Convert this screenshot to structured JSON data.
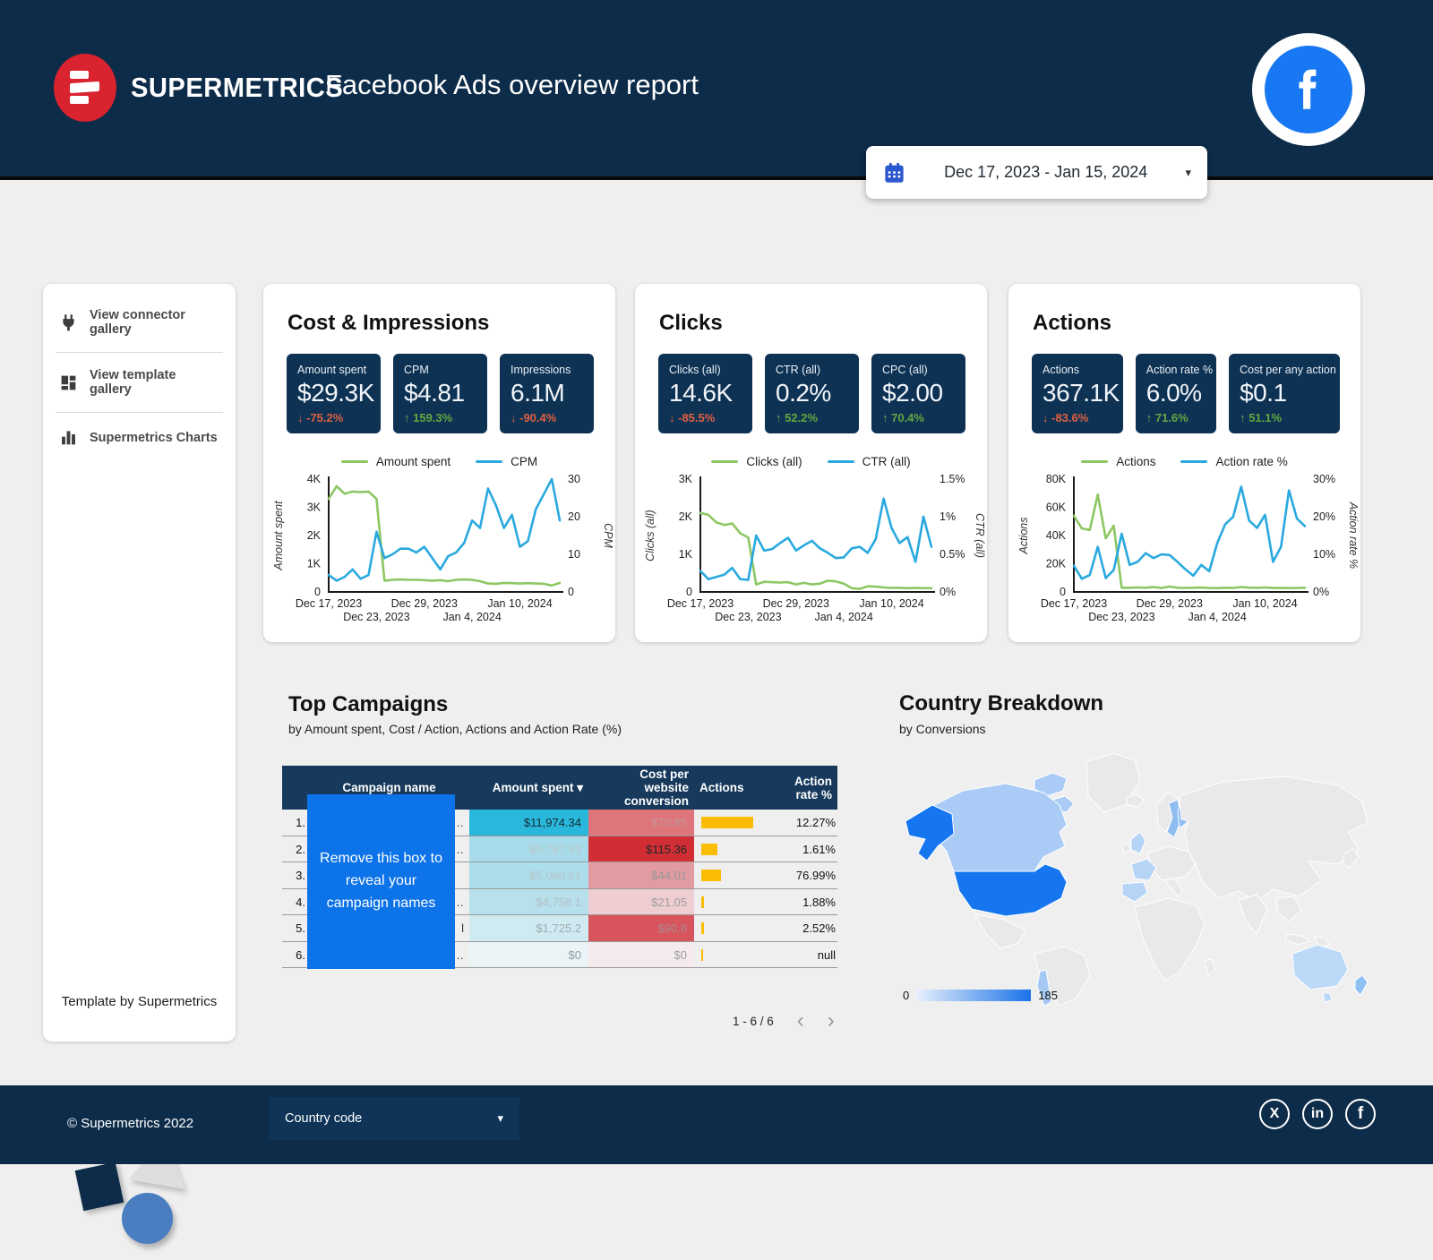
{
  "header": {
    "brand": "SUPERMETRICS",
    "title": "Facebook Ads overview report"
  },
  "date_picker": {
    "range": "Dec 17, 2023 - Jan 15, 2024"
  },
  "icons": {
    "caret_down": "▾",
    "chevron_left": "‹",
    "chevron_right": "›",
    "arrow_up": "↑",
    "arrow_down": "↓",
    "x_glyph": "X",
    "linkedin_glyph": "in",
    "facebook_glyph": "f"
  },
  "sidebar": {
    "items": [
      {
        "label": "View connector gallery"
      },
      {
        "label": "View template gallery"
      },
      {
        "label": "Supermetrics Charts"
      }
    ],
    "footer_note": "Template by Supermetrics"
  },
  "cards": [
    {
      "title": "Cost & Impressions",
      "kpis": [
        {
          "label": "Amount spent",
          "value": "$29.3K",
          "delta": "-75.2%",
          "dir": "down"
        },
        {
          "label": "CPM",
          "value": "$4.81",
          "delta": "159.3%",
          "dir": "up"
        },
        {
          "label": "Impressions",
          "value": "6.1M",
          "delta": "-90.4%",
          "dir": "down"
        }
      ]
    },
    {
      "title": "Clicks",
      "kpis": [
        {
          "label": "Clicks (all)",
          "value": "14.6K",
          "delta": "-85.5%",
          "dir": "down"
        },
        {
          "label": "CTR (all)",
          "value": "0.2%",
          "delta": "52.2%",
          "dir": "up"
        },
        {
          "label": "CPC (all)",
          "value": "$2.00",
          "delta": "70.4%",
          "dir": "up"
        }
      ]
    },
    {
      "title": "Actions",
      "kpis": [
        {
          "label": "Actions",
          "value": "367.1K",
          "delta": "-83.6%",
          "dir": "down"
        },
        {
          "label": "Action rate %",
          "value": "6.0%",
          "delta": "71.6%",
          "dir": "up"
        },
        {
          "label": "Cost per any action",
          "value": "$0.1",
          "delta": "51.1%",
          "dir": "up"
        }
      ]
    }
  ],
  "chart_data": [
    {
      "type": "line",
      "x_ticks": [
        {
          "label": "Dec 17, 2023",
          "i": 0,
          "row": 1
        },
        {
          "label": "Dec 23, 2023",
          "i": 6,
          "row": 2
        },
        {
          "label": "Dec 29, 2023",
          "i": 12,
          "row": 1
        },
        {
          "label": "Jan 4, 2024",
          "i": 18,
          "row": 2
        },
        {
          "label": "Jan 10, 2024",
          "i": 24,
          "row": 1
        }
      ],
      "left_axis": {
        "label": "Amount spent",
        "min": 0,
        "max": 4000,
        "ticks": [
          {
            "v": 0,
            "l": "0"
          },
          {
            "v": 1000,
            "l": "1K"
          },
          {
            "v": 2000,
            "l": "2K"
          },
          {
            "v": 3000,
            "l": "3K"
          },
          {
            "v": 4000,
            "l": "4K"
          }
        ]
      },
      "right_axis": {
        "label": "CPM",
        "min": 0,
        "max": 30,
        "ticks": [
          {
            "v": 0,
            "l": "0"
          },
          {
            "v": 10,
            "l": "10"
          },
          {
            "v": 20,
            "l": "20"
          },
          {
            "v": 30,
            "l": "30"
          }
        ]
      },
      "series": [
        {
          "name": "Amount spent",
          "axis": "left",
          "color": "#8dc763",
          "values": [
            3300,
            3750,
            3480,
            3560,
            3540,
            3560,
            3300,
            400,
            430,
            440,
            430,
            430,
            420,
            400,
            420,
            380,
            430,
            440,
            430,
            380,
            300,
            290,
            320,
            310,
            300,
            310,
            300,
            290,
            230,
            320
          ]
        },
        {
          "name": "CPM",
          "axis": "right",
          "color": "#29a9df",
          "values": [
            4.5,
            3,
            4,
            6,
            3.5,
            4.5,
            16,
            9,
            10,
            11.5,
            11.5,
            10.5,
            12,
            9,
            6,
            9.5,
            10.5,
            13,
            19,
            17,
            27.5,
            23,
            17,
            20.5,
            12,
            13.5,
            22,
            26,
            30,
            19
          ]
        }
      ]
    },
    {
      "type": "line",
      "x_ticks": [
        {
          "label": "Dec 17, 2023",
          "i": 0,
          "row": 1
        },
        {
          "label": "Dec 23, 2023",
          "i": 6,
          "row": 2
        },
        {
          "label": "Dec 29, 2023",
          "i": 12,
          "row": 1
        },
        {
          "label": "Jan 4, 2024",
          "i": 18,
          "row": 2
        },
        {
          "label": "Jan 10, 2024",
          "i": 24,
          "row": 1
        }
      ],
      "left_axis": {
        "label": "Clicks (all)",
        "min": 0,
        "max": 3000,
        "ticks": [
          {
            "v": 0,
            "l": "0"
          },
          {
            "v": 1000,
            "l": "1K"
          },
          {
            "v": 2000,
            "l": "2K"
          },
          {
            "v": 3000,
            "l": "3K"
          }
        ]
      },
      "right_axis": {
        "label": "CTR (all)",
        "min": 0,
        "max": 1.5,
        "ticks": [
          {
            "v": 0,
            "l": "0%"
          },
          {
            "v": 0.5,
            "l": "0.5%"
          },
          {
            "v": 1,
            "l": "1%"
          },
          {
            "v": 1.5,
            "l": "1.5%"
          }
        ]
      },
      "series": [
        {
          "name": "Clicks (all)",
          "axis": "left",
          "color": "#8dc763",
          "values": [
            2100,
            2050,
            1850,
            1780,
            1820,
            1560,
            1450,
            200,
            270,
            260,
            250,
            260,
            200,
            240,
            200,
            220,
            300,
            280,
            220,
            100,
            80,
            150,
            140,
            120,
            110,
            110,
            100,
            110,
            100,
            100
          ]
        },
        {
          "name": "CTR (all)",
          "axis": "right",
          "color": "#29a9df",
          "values": [
            0.28,
            0.17,
            0.2,
            0.23,
            0.32,
            0.17,
            0.16,
            0.75,
            0.55,
            0.57,
            0.65,
            0.72,
            0.55,
            0.62,
            0.68,
            0.58,
            0.52,
            0.45,
            0.46,
            0.58,
            0.6,
            0.52,
            0.7,
            1.24,
            0.85,
            0.65,
            0.73,
            0.4,
            1.0,
            0.6
          ]
        }
      ]
    },
    {
      "type": "line",
      "x_ticks": [
        {
          "label": "Dec 17, 2023",
          "i": 0,
          "row": 1
        },
        {
          "label": "Dec 23, 2023",
          "i": 6,
          "row": 2
        },
        {
          "label": "Dec 29, 2023",
          "i": 12,
          "row": 1
        },
        {
          "label": "Jan 4, 2024",
          "i": 18,
          "row": 2
        },
        {
          "label": "Jan 10, 2024",
          "i": 24,
          "row": 1
        }
      ],
      "left_axis": {
        "label": "Actions",
        "min": 0,
        "max": 80000,
        "ticks": [
          {
            "v": 0,
            "l": "0"
          },
          {
            "v": 20000,
            "l": "20K"
          },
          {
            "v": 40000,
            "l": "40K"
          },
          {
            "v": 60000,
            "l": "60K"
          },
          {
            "v": 80000,
            "l": "80K"
          }
        ]
      },
      "right_axis": {
        "label": "Action rate %",
        "min": 0,
        "max": 30,
        "ticks": [
          {
            "v": 0,
            "l": "0%"
          },
          {
            "v": 10,
            "l": "10%"
          },
          {
            "v": 20,
            "l": "20%"
          },
          {
            "v": 30,
            "l": "30%"
          }
        ]
      },
      "series": [
        {
          "name": "Actions",
          "axis": "left",
          "color": "#8dc763",
          "values": [
            54000,
            45000,
            44000,
            69000,
            38000,
            47000,
            3000,
            3000,
            3200,
            3000,
            3500,
            2800,
            3800,
            3000,
            2900,
            3000,
            3100,
            2800,
            2700,
            3000,
            2800,
            3500,
            3000,
            2900,
            3200,
            2800,
            2900,
            2700,
            2800,
            3000
          ]
        },
        {
          "name": "Action rate %",
          "axis": "right",
          "color": "#29a9df",
          "values": [
            7,
            3.5,
            4.5,
            12,
            3.7,
            5.8,
            15.5,
            7.2,
            8,
            10.3,
            9,
            10,
            9.8,
            8,
            6,
            4.3,
            7.2,
            5.5,
            13,
            18,
            20,
            28,
            19,
            17,
            20.5,
            8,
            12,
            27,
            19.5,
            17.5
          ]
        }
      ]
    }
  ],
  "top_campaigns": {
    "title": "Top Campaigns",
    "subtitle": "by  Amount spent, Cost / Action, Actions and Action Rate (%)",
    "columns": {
      "name": "Campaign name",
      "spent": "Amount spent",
      "cost": "Cost per website conversion",
      "actions": "Actions",
      "rate": "Action rate %"
    },
    "overlay_text": "Remove this box to reveal your campaign names",
    "rows": [
      {
        "rank": "1.",
        "name": "…",
        "spent": "$11,974.34",
        "spent_bg": "#2ab7dc",
        "spent_color": "#132a33",
        "cost": "$70.85",
        "cost_bg": "#dd757b",
        "cost_color": "#c09699",
        "bar": 58,
        "rate": "12.27%"
      },
      {
        "rank": "2.",
        "name": "…",
        "spent": "$5,767.93",
        "spent_bg": "#a7dbe9",
        "spent_color": "#bcc7cb",
        "cost": "$115.36",
        "cost_bg": "#d02e34",
        "cost_color": "#20262a",
        "bar": 18,
        "rate": "1.61%"
      },
      {
        "rank": "3.",
        "name": "",
        "spent": "$5,060.61",
        "spent_bg": "#abddea",
        "spent_color": "#b9c4c8",
        "cost": "$44.01",
        "cost_bg": "#e29ba0",
        "cost_color": "#97999b",
        "bar": 22,
        "rate": "76.99%"
      },
      {
        "rank": "4.",
        "name": "…",
        "spent": "$4,758.1",
        "spent_bg": "#b6e0eb",
        "spent_color": "#b4bfc4",
        "cost": "$21.05",
        "cost_bg": "#efced1",
        "cost_color": "#9b9ea0",
        "bar": 3,
        "rate": "1.88%"
      },
      {
        "rank": "5.",
        "name": "l",
        "spent": "$1,725.2",
        "spent_bg": "#cfeaf1",
        "spent_color": "#9fabb0",
        "cost": "$90.8",
        "cost_bg": "#d9555d",
        "cost_color": "#a98a8d",
        "bar": 3,
        "rate": "2.52%"
      },
      {
        "rank": "6.",
        "name": "…",
        "spent": "$0",
        "spent_bg": "#eaf3f6",
        "spent_color": "#93a0a5",
        "cost": "$0",
        "cost_bg": "#f6ebec",
        "cost_color": "#9b9ea0",
        "bar": 2,
        "rate": "null"
      }
    ],
    "pagination": "1 - 6 / 6"
  },
  "country_breakdown": {
    "title": "Country Breakdown",
    "subtitle": "by Conversions",
    "legend_min": "0",
    "legend_max": "185",
    "map_colors": {
      "base": "#e9e9e9",
      "us": "#1576f0",
      "canada": "#a9cbf5",
      "scandinavia": "#90bdf0",
      "europe": "#b6d4f6",
      "australia": "#bcd9f8",
      "chile": "#a5c9f3",
      "nz": "#8fc0f2"
    }
  },
  "footer": {
    "copyright": "© Supermetrics 2022",
    "dropdown_label": "Country code"
  }
}
